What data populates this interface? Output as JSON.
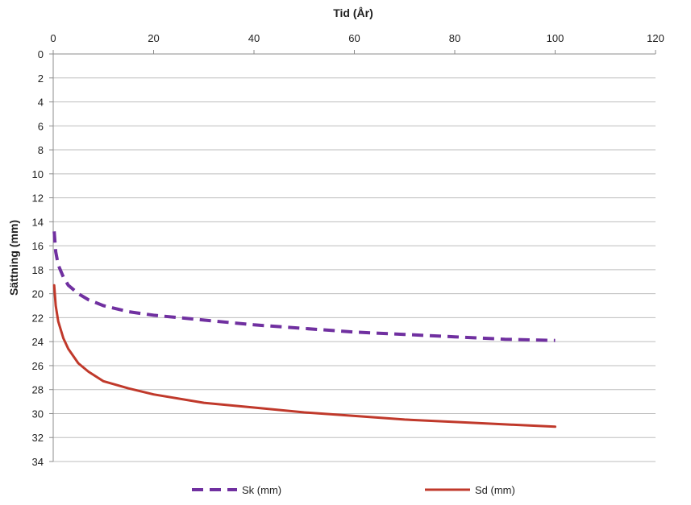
{
  "chart_data": {
    "type": "line",
    "xlabel": "Tid (År)",
    "ylabel": "Sättning (mm)",
    "xlim": [
      0,
      120
    ],
    "ylim": [
      0,
      34
    ],
    "x_ticks": [
      0,
      20,
      40,
      60,
      80,
      100,
      120
    ],
    "y_ticks": [
      0,
      2,
      4,
      6,
      8,
      10,
      12,
      14,
      16,
      18,
      20,
      22,
      24,
      26,
      28,
      30,
      32,
      34
    ],
    "x_axis_position": "top",
    "y_axis_inverted": true,
    "grid": "horizontal",
    "legend_position": "bottom",
    "series": [
      {
        "name": "Sk (mm)",
        "color": "#7030a0",
        "dash": "dashed",
        "x": [
          0.2,
          0.5,
          1,
          2,
          3,
          5,
          7,
          10,
          15,
          20,
          30,
          40,
          50,
          60,
          70,
          80,
          90,
          100
        ],
        "y": [
          14.8,
          16.5,
          17.6,
          18.6,
          19.3,
          20.0,
          20.5,
          21.0,
          21.5,
          21.8,
          22.2,
          22.6,
          22.9,
          23.2,
          23.4,
          23.6,
          23.8,
          23.9
        ]
      },
      {
        "name": "Sd (mm)",
        "color": "#c0392b",
        "dash": "solid",
        "x": [
          0.2,
          0.5,
          1,
          2,
          3,
          5,
          7,
          10,
          15,
          20,
          30,
          40,
          50,
          60,
          70,
          80,
          90,
          100
        ],
        "y": [
          19.3,
          21.0,
          22.3,
          23.7,
          24.6,
          25.8,
          26.5,
          27.3,
          27.9,
          28.4,
          29.1,
          29.5,
          29.9,
          30.2,
          30.5,
          30.7,
          30.9,
          31.1
        ]
      }
    ]
  }
}
